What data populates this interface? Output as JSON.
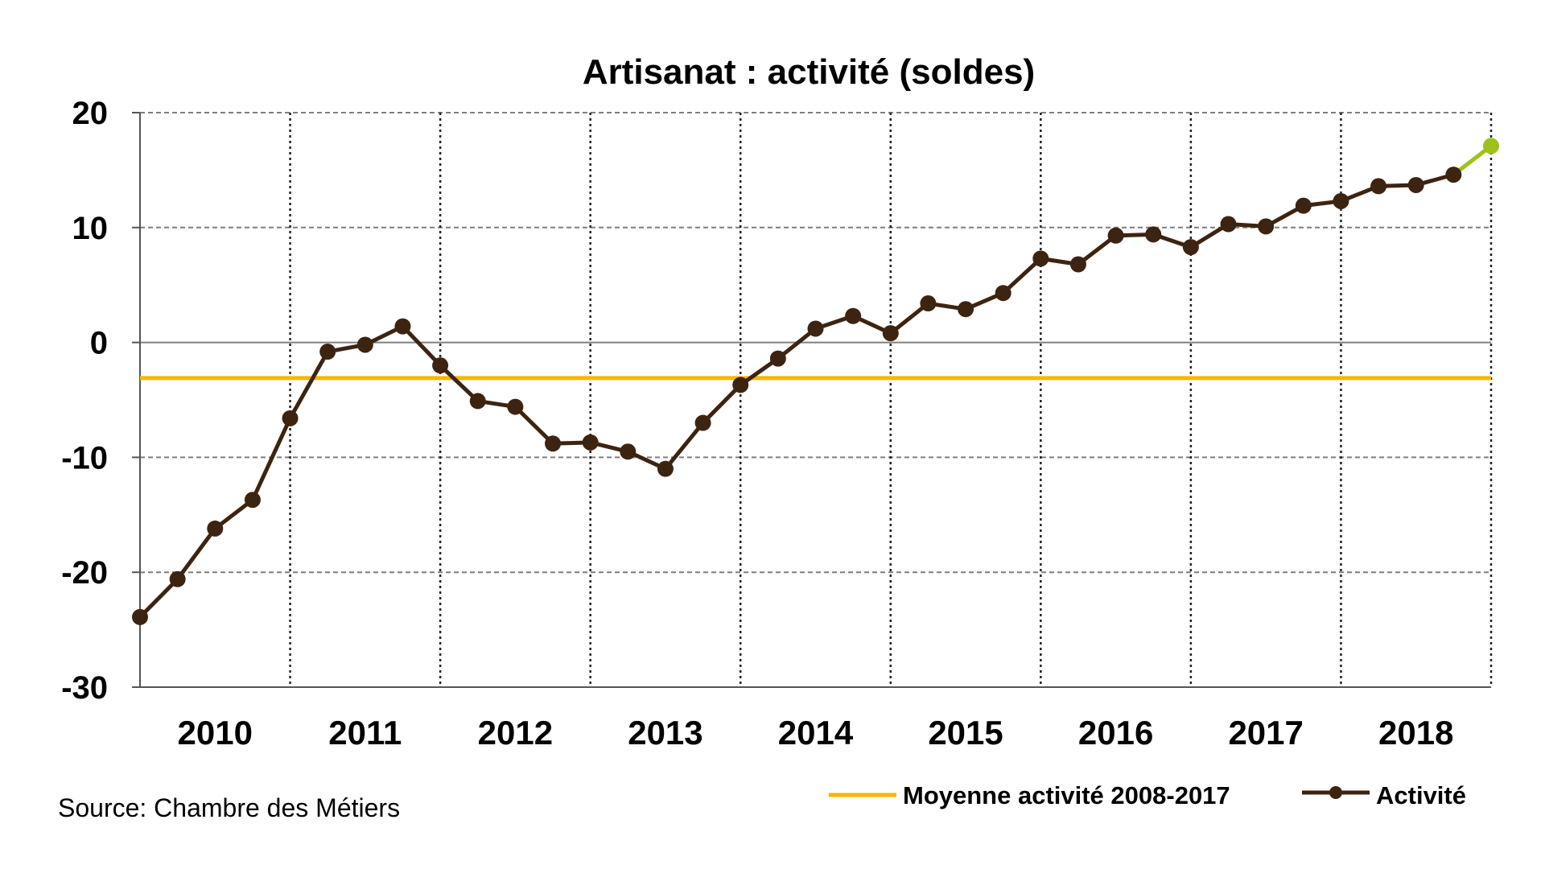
{
  "chart_data": {
    "type": "line",
    "title": "Artisanat : activité (soldes)",
    "xlabel": "",
    "ylabel": "",
    "ylim": [
      -30,
      20
    ],
    "yticks": [
      20,
      10,
      0,
      -10,
      -20,
      -30
    ],
    "year_labels": [
      "2010",
      "2011",
      "2012",
      "2013",
      "2014",
      "2015",
      "2016",
      "2017",
      "2018"
    ],
    "grid": true,
    "legend_placement": "bottom-right",
    "series": [
      {
        "name": "Activité",
        "color": "#3d2410",
        "last_point_color": "#9dc21b",
        "x": [
          "2010-T1",
          "2010-T2",
          "2010-T3",
          "2010-T4",
          "2011-T1",
          "2011-T2",
          "2011-T3",
          "2011-T4",
          "2012-T1",
          "2012-T2",
          "2012-T3",
          "2012-T4",
          "2013-T1",
          "2013-T2",
          "2013-T3",
          "2013-T4",
          "2014-T1",
          "2014-T2",
          "2014-T3",
          "2014-T4",
          "2015-T1",
          "2015-T2",
          "2015-T3",
          "2015-T4",
          "2016-T1",
          "2016-T2",
          "2016-T3",
          "2016-T4",
          "2017-T1",
          "2017-T2",
          "2017-T3",
          "2017-T4",
          "2018-T1",
          "2018-T2",
          "2018-T3",
          "2018-T4",
          "2018-T5"
        ],
        "values": [
          -23.9,
          -20.6,
          -16.2,
          -13.7,
          -6.6,
          -0.8,
          -0.2,
          1.4,
          -2.0,
          -5.1,
          -5.6,
          -8.8,
          -8.7,
          -9.5,
          -11.0,
          -7.0,
          -3.7,
          -1.4,
          1.2,
          2.3,
          0.8,
          3.4,
          2.9,
          4.3,
          7.3,
          6.8,
          9.3,
          9.4,
          8.3,
          10.3,
          10.1,
          11.9,
          12.3,
          13.6,
          13.7,
          14.6,
          17.1
        ]
      },
      {
        "name": "Moyenne activité 2008-2017",
        "color": "#f5b800",
        "constant_value": -3.1
      }
    ],
    "source": "Source: Chambre des Métiers"
  }
}
